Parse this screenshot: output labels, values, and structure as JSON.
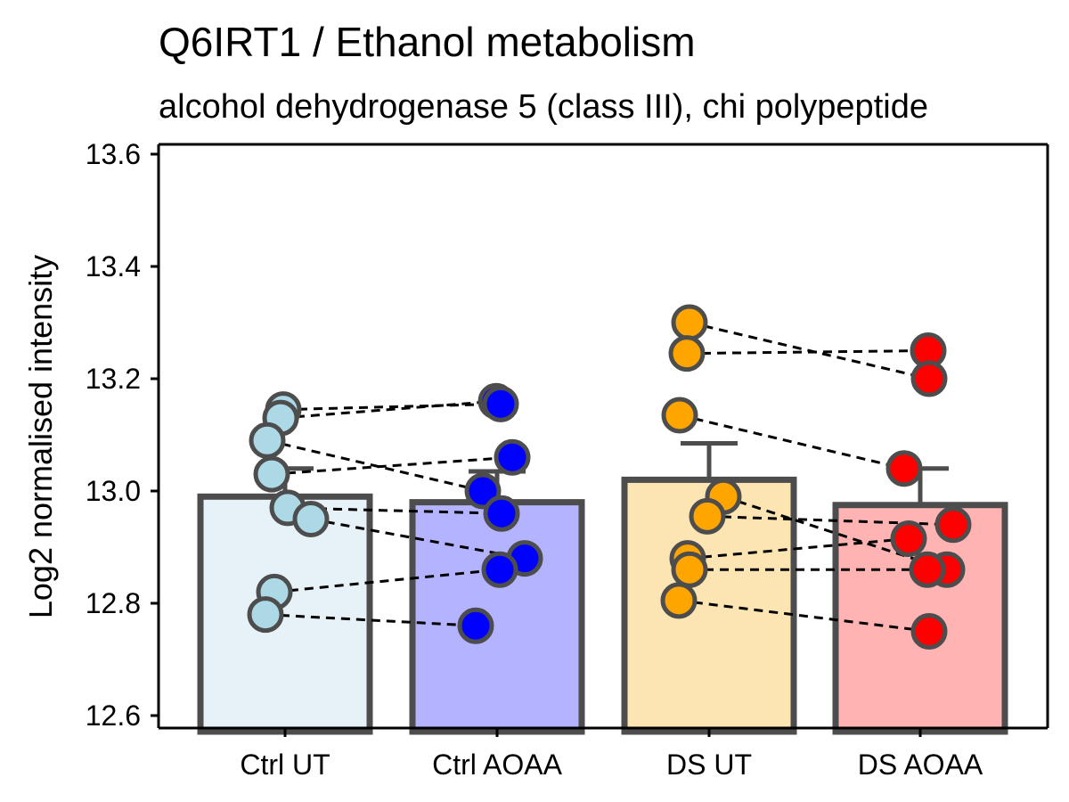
{
  "chart_data": {
    "type": "bar",
    "title": "Q6IRT1 / Ethanol  metabolism",
    "subtitle": "alcohol dehydrogenase 5 (class III), chi polypeptide",
    "xlabel": "",
    "ylabel": "Log2 normalised intensity",
    "ylim": [
      12.6,
      13.6
    ],
    "yticks": [
      "12.6",
      "12.8",
      "13.0",
      "13.2",
      "13.4",
      "13.6"
    ],
    "grid": false,
    "categories": [
      "Ctrl UT",
      "Ctrl AOAA",
      "DS UT",
      "DS AOAA"
    ],
    "values": [
      12.99,
      12.98,
      13.02,
      12.975
    ],
    "error_upper": [
      13.04,
      13.035,
      13.085,
      13.04
    ],
    "bar_fill_colors": [
      "#e6f2f8",
      "#b3b3ff",
      "#fde5b3",
      "#ffb3b3"
    ],
    "point_colors": [
      "#add8e6",
      "#0000ff",
      "#ffa500",
      "#ff0000"
    ],
    "points": [
      [
        13.145,
        13.13,
        13.09,
        13.03,
        12.97,
        12.95,
        12.82,
        12.78
      ],
      [
        13.16,
        13.155,
        13.06,
        13.0,
        12.96,
        12.88,
        12.86,
        12.76
      ],
      [
        13.3,
        13.245,
        13.135,
        12.99,
        12.955,
        12.88,
        12.86,
        12.805
      ],
      [
        13.25,
        13.2,
        13.04,
        12.94,
        12.915,
        12.86,
        12.86,
        12.75
      ]
    ],
    "pairs": [
      [
        [
          13.145,
          13.155
        ],
        [
          13.13,
          13.16
        ],
        [
          13.09,
          13.0
        ],
        [
          13.03,
          13.06
        ],
        [
          12.97,
          12.96
        ],
        [
          12.95,
          12.88
        ],
        [
          12.82,
          12.86
        ],
        [
          12.78,
          12.76
        ]
      ],
      [
        [
          13.3,
          13.2
        ],
        [
          13.245,
          13.25
        ],
        [
          13.135,
          13.04
        ],
        [
          12.99,
          12.86
        ],
        [
          12.955,
          12.94
        ],
        [
          12.88,
          12.915
        ],
        [
          12.86,
          12.86
        ],
        [
          12.805,
          12.75
        ]
      ]
    ]
  }
}
